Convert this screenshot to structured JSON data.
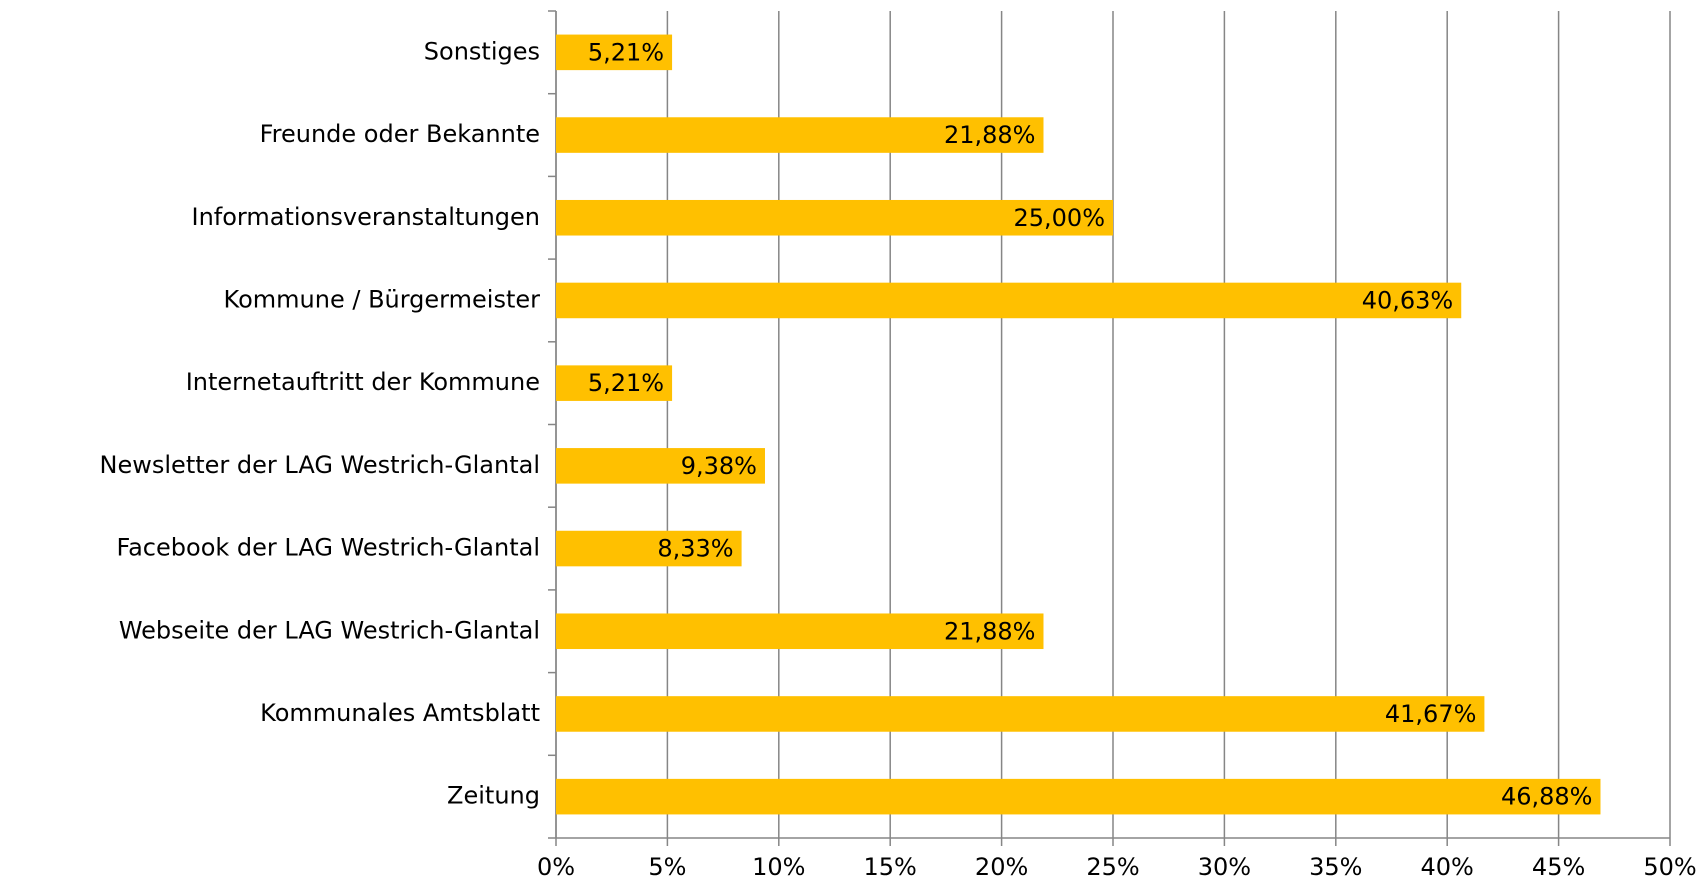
{
  "chart_data": {
    "type": "bar",
    "orientation": "horizontal",
    "categories": [
      "Sonstiges",
      "Freunde oder Bekannte",
      "Informationsveranstaltungen",
      "Kommune / Bürgermeister",
      "Internetauftritt der Kommune",
      "Newsletter der LAG Westrich-Glantal",
      "Facebook der LAG Westrich-Glantal",
      "Webseite der LAG Westrich-Glantal",
      "Kommunales Amtsblatt",
      "Zeitung"
    ],
    "values": [
      5.21,
      21.88,
      25.0,
      40.63,
      5.21,
      9.38,
      8.33,
      21.88,
      41.67,
      46.88
    ],
    "value_labels": [
      "5,21%",
      "21,88%",
      "25,00%",
      "40,63%",
      "5,21%",
      "9,38%",
      "8,33%",
      "21,88%",
      "41,67%",
      "46,88%"
    ],
    "color": "#ffc000",
    "xlim": [
      0,
      50
    ],
    "xticks": [
      {
        "value": 0,
        "label": "0%"
      },
      {
        "value": 5,
        "label": "5%"
      },
      {
        "value": 10,
        "label": "10%"
      },
      {
        "value": 15,
        "label": "15%"
      },
      {
        "value": 20,
        "label": "20%"
      },
      {
        "value": 25,
        "label": "25%"
      },
      {
        "value": 30,
        "label": "30%"
      },
      {
        "value": 35,
        "label": "35%"
      },
      {
        "value": 40,
        "label": "40%"
      },
      {
        "value": 45,
        "label": "45%"
      },
      {
        "value": 50,
        "label": "50%"
      }
    ],
    "grid": true
  }
}
